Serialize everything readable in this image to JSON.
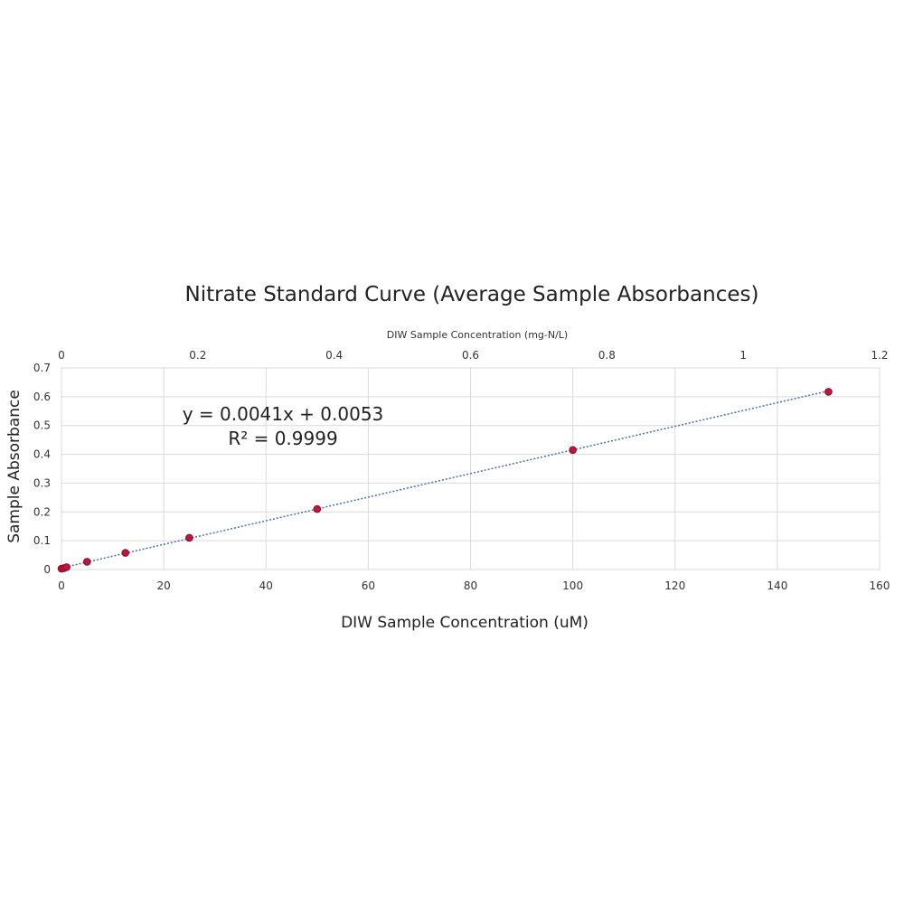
{
  "chart_data": {
    "type": "scatter",
    "title": "Nitrate Standard Curve (Average Sample Absorbances)",
    "xlabel": "DIW Sample Concentration (uM)",
    "ylabel": "Sample Absorbance",
    "x2label": "DIW Sample Concentration (mg-N/L)",
    "xlim": [
      0,
      160
    ],
    "ylim": [
      0,
      0.7
    ],
    "x2lim": [
      0,
      1.2
    ],
    "xticks": [
      "0",
      "20",
      "40",
      "60",
      "80",
      "100",
      "120",
      "140",
      "160"
    ],
    "yticks": [
      "0",
      "0.1",
      "0.2",
      "0.3",
      "0.4",
      "0.5",
      "0.6",
      "0.7"
    ],
    "x2ticks": [
      "0",
      "0.2",
      "0.4",
      "0.6",
      "0.8",
      "1",
      "1.2"
    ],
    "grid": true,
    "series": [
      {
        "color": "#c0143c",
        "points": [
          {
            "x": 0,
            "y": 0.003
          },
          {
            "x": 0.5,
            "y": 0.005
          },
          {
            "x": 1,
            "y": 0.008
          },
          {
            "x": 5,
            "y": 0.027
          },
          {
            "x": 12.5,
            "y": 0.058
          },
          {
            "x": 25,
            "y": 0.11
          },
          {
            "x": 50,
            "y": 0.21
          },
          {
            "x": 100,
            "y": 0.415
          },
          {
            "x": 150,
            "y": 0.617
          }
        ]
      }
    ],
    "trendline": {
      "slope": 0.0041,
      "intercept": 0.0053,
      "equation": "y = 0.0041x + 0.0053",
      "r_squared": "R² = 0.9999",
      "color": "#4a6fa5"
    }
  }
}
